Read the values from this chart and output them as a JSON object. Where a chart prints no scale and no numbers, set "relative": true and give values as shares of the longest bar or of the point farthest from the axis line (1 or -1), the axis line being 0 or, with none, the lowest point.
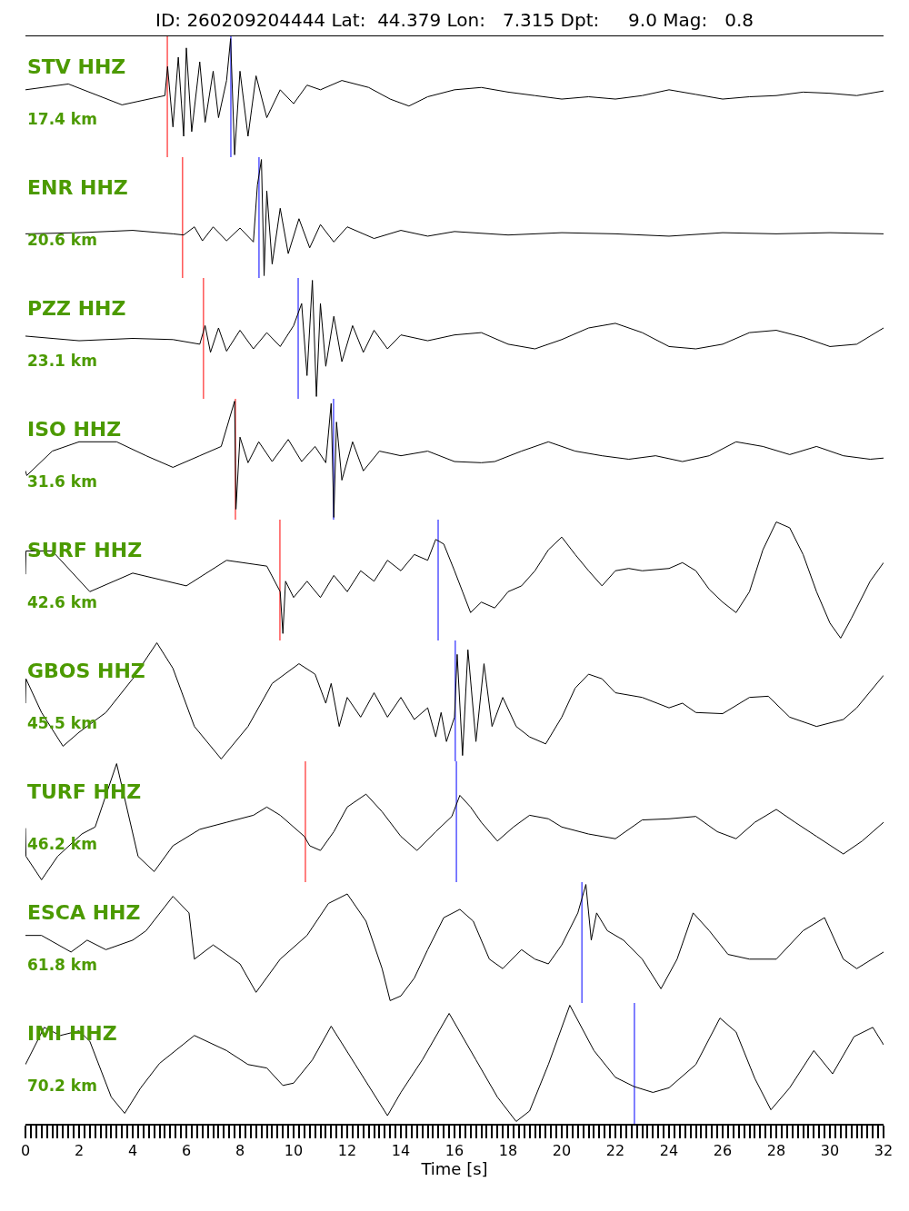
{
  "chart_data": [
    {
      "type": "line",
      "title": "ID: 260209204444 Lat:  44.379 Lon:   7.315 Dpt:     9.0 Mag:   0.8",
      "annotations": [
        "STV HHZ",
        "17.4 km"
      ],
      "relative": true,
      "xlim": [
        0,
        32
      ],
      "tick_labels": false,
      "series": [
        {
          "color": "#000000",
          "x": [
            0,
            1.6,
            3.6,
            5.2,
            5.3,
            5.5,
            5.7,
            5.9,
            6.0,
            6.2,
            6.5,
            6.7,
            7.0,
            7.2,
            7.5,
            7.65,
            7.8,
            8.0,
            8.3,
            8.6,
            9.0,
            9.5,
            10,
            10.5,
            11,
            11.8,
            12.8,
            13.6,
            14.3,
            15,
            16,
            17,
            18,
            19,
            20,
            21,
            22,
            23,
            24,
            25,
            26,
            27,
            28,
            29,
            30,
            31,
            32
          ],
          "values": [
            0.56,
            0.61,
            0.43,
            0.51,
            0.76,
            0.24,
            0.84,
            0.16,
            0.92,
            0.2,
            0.8,
            0.28,
            0.72,
            0.32,
            0.64,
            1,
            0,
            0.72,
            0.16,
            0.68,
            0.32,
            0.56,
            0.44,
            0.6,
            0.56,
            0.64,
            0.58,
            0.48,
            0.42,
            0.5,
            0.56,
            0.58,
            0.54,
            0.51,
            0.48,
            0.5,
            0.48,
            0.51,
            0.56,
            0.52,
            0.48,
            0.5,
            0.51,
            0.54,
            0.53,
            0.51,
            0.55
          ]
        }
      ],
      "ref_lines": [
        {
          "axis": "x",
          "value": 5.29,
          "color": "#ff0000"
        },
        {
          "axis": "x",
          "value": 7.66,
          "color": "#0000ff"
        }
      ]
    },
    {
      "type": "line",
      "annotations": [
        "ENR HHZ",
        "20.6 km"
      ],
      "relative": true,
      "xlim": [
        0,
        32
      ],
      "tick_labels": false,
      "series": [
        {
          "color": "#000000",
          "x": [
            0,
            2,
            4,
            5.5,
            5.9,
            6.3,
            6.6,
            7,
            7.5,
            8,
            8.5,
            8.65,
            8.8,
            8.9,
            9.0,
            9.2,
            9.5,
            9.8,
            10.2,
            10.6,
            11,
            11.5,
            12,
            13,
            14,
            15,
            16,
            18,
            20,
            22,
            24,
            26,
            28,
            30,
            32
          ],
          "values": [
            0.36,
            0.37,
            0.39,
            0.36,
            0.35,
            0.42,
            0.3,
            0.42,
            0.3,
            0.41,
            0.29,
            0.78,
            1,
            0,
            0.73,
            0.1,
            0.58,
            0.19,
            0.49,
            0.24,
            0.44,
            0.29,
            0.42,
            0.32,
            0.39,
            0.34,
            0.38,
            0.35,
            0.37,
            0.36,
            0.34,
            0.37,
            0.36,
            0.37,
            0.36
          ]
        }
      ],
      "ref_lines": [
        {
          "axis": "x",
          "value": 5.86,
          "color": "#ff0000"
        },
        {
          "axis": "x",
          "value": 8.71,
          "color": "#0000ff"
        }
      ]
    },
    {
      "type": "line",
      "annotations": [
        "PZZ HHZ",
        "23.1 km"
      ],
      "relative": true,
      "xlim": [
        0,
        32
      ],
      "tick_labels": false,
      "series": [
        {
          "color": "#000000",
          "x": [
            0,
            2,
            4,
            5.5,
            6.5,
            6.7,
            6.9,
            7.2,
            7.5,
            8,
            8.5,
            9,
            9.5,
            10,
            10.3,
            10.5,
            10.7,
            10.85,
            11,
            11.2,
            11.5,
            11.8,
            12.2,
            12.6,
            13,
            13.5,
            14,
            15,
            16,
            17,
            18,
            19,
            20,
            21,
            22,
            23,
            24,
            25,
            26,
            27,
            28,
            29,
            30,
            31,
            32
          ],
          "values": [
            0.52,
            0.48,
            0.5,
            0.49,
            0.45,
            0.61,
            0.38,
            0.59,
            0.39,
            0.57,
            0.41,
            0.55,
            0.43,
            0.61,
            0.8,
            0.18,
            1,
            0,
            0.8,
            0.26,
            0.69,
            0.3,
            0.61,
            0.38,
            0.57,
            0.41,
            0.53,
            0.48,
            0.53,
            0.55,
            0.45,
            0.41,
            0.49,
            0.59,
            0.63,
            0.55,
            0.43,
            0.41,
            0.45,
            0.55,
            0.57,
            0.51,
            0.43,
            0.45,
            0.59
          ]
        }
      ],
      "ref_lines": [
        {
          "axis": "x",
          "value": 6.64,
          "color": "#ff0000"
        },
        {
          "axis": "x",
          "value": 10.17,
          "color": "#0000ff"
        }
      ]
    },
    {
      "type": "line",
      "annotations": [
        "ISO HHZ",
        "31.6 km"
      ],
      "relative": true,
      "xlim": [
        0,
        32
      ],
      "tick_labels": false,
      "series": [
        {
          "color": "#000000",
          "x": [
            0,
            0.05,
            1,
            2,
            3.4,
            4.5,
            5.5,
            6.5,
            7.3,
            7.8,
            7.85,
            8.0,
            8.3,
            8.7,
            9.2,
            9.8,
            10.3,
            10.8,
            11.2,
            11.4,
            11.5,
            11.6,
            11.8,
            12.2,
            12.6,
            13.2,
            14,
            15,
            16,
            17,
            17.5,
            18.5,
            19.5,
            20.5,
            21.5,
            22.5,
            23.5,
            24.5,
            25.5,
            26.5,
            27.5,
            28.5,
            29.5,
            30.5,
            31.5,
            32
          ],
          "values": [
            0.4,
            0.36,
            0.57,
            0.65,
            0.65,
            0.53,
            0.43,
            0.53,
            0.61,
            1,
            0.07,
            0.69,
            0.47,
            0.65,
            0.48,
            0.67,
            0.48,
            0.61,
            0.47,
            0.98,
            0,
            0.82,
            0.32,
            0.65,
            0.4,
            0.57,
            0.53,
            0.57,
            0.48,
            0.47,
            0.48,
            0.57,
            0.65,
            0.57,
            0.53,
            0.5,
            0.53,
            0.48,
            0.53,
            0.65,
            0.61,
            0.54,
            0.61,
            0.53,
            0.5,
            0.51
          ]
        }
      ],
      "ref_lines": [
        {
          "axis": "x",
          "value": 7.83,
          "color": "#ff0000"
        },
        {
          "axis": "x",
          "value": 11.49,
          "color": "#0000ff"
        }
      ]
    },
    {
      "type": "line",
      "annotations": [
        "SURF HHZ",
        "42.6 km"
      ],
      "relative": true,
      "xlim": [
        0,
        32
      ],
      "tick_labels": false,
      "series": [
        {
          "color": "#000000",
          "x": [
            0,
            0.02,
            1,
            2.4,
            4,
            6,
            7.5,
            9,
            9.5,
            9.6,
            9.7,
            10,
            10.5,
            11,
            11.5,
            12,
            12.5,
            13,
            13.5,
            14,
            14.5,
            15,
            15.3,
            15.6,
            16,
            16.3,
            16.6,
            17,
            17.5,
            18,
            18.5,
            19,
            19.5,
            20,
            20.5,
            21,
            21.5,
            22,
            22.5,
            23,
            24,
            24.5,
            25,
            25.5,
            26,
            26.5,
            27,
            27.5,
            28,
            28.5,
            29,
            29.5,
            30,
            30.4,
            30.8,
            31.5,
            32
          ],
          "values": [
            0.55,
            0.75,
            0.75,
            0.4,
            0.56,
            0.45,
            0.67,
            0.62,
            0.4,
            0.04,
            0.49,
            0.35,
            0.49,
            0.35,
            0.54,
            0.4,
            0.58,
            0.49,
            0.67,
            0.58,
            0.72,
            0.67,
            0.85,
            0.81,
            0.58,
            0.4,
            0.22,
            0.31,
            0.26,
            0.4,
            0.45,
            0.58,
            0.76,
            0.87,
            0.72,
            0.58,
            0.45,
            0.58,
            0.6,
            0.58,
            0.6,
            0.65,
            0.58,
            0.42,
            0.31,
            0.22,
            0.4,
            0.76,
            1,
            0.95,
            0.72,
            0.4,
            0.13,
            0,
            0.17,
            0.49,
            0.65
          ]
        }
      ],
      "ref_lines": [
        {
          "axis": "x",
          "value": 9.49,
          "color": "#ff0000"
        },
        {
          "axis": "x",
          "value": 15.39,
          "color": "#0000ff"
        }
      ]
    },
    {
      "type": "line",
      "annotations": [
        "GBOS HHZ",
        "45.5 km"
      ],
      "relative": true,
      "xlim": [
        0,
        32
      ],
      "tick_labels": false,
      "series": [
        {
          "color": "#000000",
          "x": [
            0,
            0.02,
            0.6,
            1.4,
            2,
            3,
            4,
            4.9,
            5.5,
            6.3,
            7.3,
            8.3,
            9.2,
            10.2,
            10.8,
            11.2,
            11.4,
            11.7,
            12,
            12.5,
            13,
            13.5,
            14,
            14.5,
            15,
            15.3,
            15.5,
            15.7,
            16,
            16.1,
            16.3,
            16.5,
            16.8,
            17.1,
            17.4,
            17.8,
            18.3,
            18.8,
            19.4,
            20,
            20.5,
            21,
            21.5,
            22,
            23,
            24,
            24.5,
            25,
            26,
            27,
            27.7,
            28.5,
            29.5,
            30.5,
            31,
            32
          ],
          "values": [
            0.48,
            0.69,
            0.4,
            0.11,
            0.23,
            0.4,
            0.69,
            1,
            0.78,
            0.28,
            0,
            0.28,
            0.65,
            0.82,
            0.73,
            0.48,
            0.65,
            0.28,
            0.53,
            0.36,
            0.57,
            0.36,
            0.53,
            0.34,
            0.44,
            0.19,
            0.4,
            0.15,
            0.36,
            0.9,
            0.03,
            0.94,
            0.15,
            0.82,
            0.28,
            0.53,
            0.28,
            0.19,
            0.13,
            0.36,
            0.61,
            0.73,
            0.69,
            0.57,
            0.53,
            0.44,
            0.48,
            0.4,
            0.39,
            0.53,
            0.54,
            0.36,
            0.28,
            0.34,
            0.44,
            0.72
          ]
        }
      ],
      "ref_lines": [
        {
          "axis": "x",
          "value": 16.03,
          "color": "#0000ff"
        }
      ]
    },
    {
      "type": "line",
      "annotations": [
        "TURF HHZ",
        "46.2 km"
      ],
      "relative": true,
      "xlim": [
        0,
        32
      ],
      "tick_labels": false,
      "series": [
        {
          "color": "#000000",
          "x": [
            0,
            0.02,
            0.6,
            1.2,
            2.1,
            2.6,
            3.4,
            4.2,
            4.8,
            5.5,
            6.5,
            7.5,
            8.5,
            9,
            9.5,
            10.4,
            10.6,
            11,
            11.5,
            12,
            12.7,
            13.3,
            14,
            14.6,
            15.3,
            15.9,
            16.2,
            16.6,
            17,
            17.6,
            18.2,
            18.8,
            19.5,
            20,
            21,
            22,
            23,
            24,
            25,
            25.8,
            26.5,
            27.2,
            28,
            28.7,
            29.5,
            30.5,
            31.2,
            32
          ],
          "values": [
            0.45,
            0.21,
            0.01,
            0.21,
            0.4,
            0.46,
            1,
            0.21,
            0.08,
            0.3,
            0.44,
            0.5,
            0.56,
            0.63,
            0.56,
            0.38,
            0.3,
            0.26,
            0.42,
            0.63,
            0.74,
            0.59,
            0.38,
            0.26,
            0.42,
            0.55,
            0.73,
            0.63,
            0.5,
            0.34,
            0.46,
            0.56,
            0.53,
            0.46,
            0.4,
            0.36,
            0.52,
            0.53,
            0.55,
            0.42,
            0.36,
            0.5,
            0.61,
            0.5,
            0.38,
            0.23,
            0.34,
            0.5
          ]
        }
      ],
      "ref_lines": [
        {
          "axis": "x",
          "value": 10.44,
          "color": "#ff0000"
        },
        {
          "axis": "x",
          "value": 16.07,
          "color": "#0000ff"
        }
      ]
    },
    {
      "type": "line",
      "annotations": [
        "ESCA HHZ",
        "61.8 km"
      ],
      "relative": true,
      "xlim": [
        0,
        32
      ],
      "tick_labels": false,
      "series": [
        {
          "color": "#000000",
          "x": [
            0,
            0.6,
            1.7,
            2.3,
            3,
            4,
            4.5,
            5.5,
            6.1,
            6.3,
            7,
            8,
            8.6,
            9.5,
            10.5,
            11.3,
            12,
            12.7,
            13.3,
            13.6,
            14,
            14.5,
            15,
            15.6,
            16.2,
            16.7,
            17.3,
            17.8,
            18.5,
            19,
            19.5,
            20,
            20.6,
            20.9,
            21.1,
            21.3,
            21.7,
            22.3,
            23,
            23.7,
            24.3,
            24.9,
            25.5,
            26.2,
            27,
            28,
            29,
            29.8,
            30.5,
            31,
            32
          ],
          "values": [
            0.57,
            0.57,
            0.43,
            0.53,
            0.45,
            0.53,
            0.61,
            0.9,
            0.76,
            0.37,
            0.49,
            0.33,
            0.09,
            0.37,
            0.57,
            0.84,
            0.92,
            0.69,
            0.29,
            0.02,
            0.06,
            0.21,
            0.45,
            0.72,
            0.79,
            0.69,
            0.37,
            0.29,
            0.45,
            0.37,
            0.33,
            0.49,
            0.76,
            1,
            0.53,
            0.76,
            0.61,
            0.53,
            0.37,
            0.12,
            0.37,
            0.76,
            0.61,
            0.41,
            0.37,
            0.37,
            0.61,
            0.72,
            0.37,
            0.29,
            0.43
          ]
        }
      ],
      "ref_lines": [
        {
          "axis": "x",
          "value": 20.75,
          "color": "#0000ff"
        }
      ]
    },
    {
      "type": "line",
      "xlabel": "Time [s]",
      "annotations": [
        "IMI HHZ",
        "70.2 km"
      ],
      "relative": true,
      "xlim": [
        0,
        32
      ],
      "tick_labels": "x",
      "xticks": [
        0,
        2,
        4,
        6,
        8,
        10,
        12,
        14,
        16,
        18,
        20,
        22,
        24,
        26,
        28,
        30,
        32,
        {
          "value": 0.2,
          "label": null
        },
        {
          "value": 0.4,
          "label": null
        },
        {
          "value": 0.6,
          "label": null
        },
        {
          "value": 0.8,
          "label": null
        },
        {
          "value": 1,
          "label": null
        },
        {
          "value": 1.2,
          "label": null
        },
        {
          "value": 1.4,
          "label": null
        },
        {
          "value": 1.6,
          "label": null
        },
        {
          "value": 1.8,
          "label": null
        },
        {
          "value": 2.2,
          "label": null
        },
        {
          "value": 2.4,
          "label": null
        },
        {
          "value": 2.6,
          "label": null
        },
        {
          "value": 2.8,
          "label": null
        },
        {
          "value": 3,
          "label": null
        },
        {
          "value": 3.2,
          "label": null
        },
        {
          "value": 3.4,
          "label": null
        },
        {
          "value": 3.6,
          "label": null
        },
        {
          "value": 3.8,
          "label": null
        },
        {
          "value": 4.2,
          "label": null
        },
        {
          "value": 4.4,
          "label": null
        },
        {
          "value": 4.6,
          "label": null
        },
        {
          "value": 4.8,
          "label": null
        },
        {
          "value": 5,
          "label": null
        },
        {
          "value": 5.2,
          "label": null
        },
        {
          "value": 5.4,
          "label": null
        },
        {
          "value": 5.6,
          "label": null
        },
        {
          "value": 5.8,
          "label": null
        },
        {
          "value": 6.2,
          "label": null
        },
        {
          "value": 6.4,
          "label": null
        },
        {
          "value": 6.6,
          "label": null
        },
        {
          "value": 6.8,
          "label": null
        },
        {
          "value": 7,
          "label": null
        },
        {
          "value": 7.2,
          "label": null
        },
        {
          "value": 7.4,
          "label": null
        },
        {
          "value": 7.6,
          "label": null
        },
        {
          "value": 7.8,
          "label": null
        },
        {
          "value": 8.2,
          "label": null
        },
        {
          "value": 8.4,
          "label": null
        },
        {
          "value": 8.6,
          "label": null
        },
        {
          "value": 8.8,
          "label": null
        },
        {
          "value": 9,
          "label": null
        },
        {
          "value": 9.2,
          "label": null
        },
        {
          "value": 9.4,
          "label": null
        },
        {
          "value": 9.6,
          "label": null
        },
        {
          "value": 9.8,
          "label": null
        },
        {
          "value": 10.2,
          "label": null
        },
        {
          "value": 10.4,
          "label": null
        },
        {
          "value": 10.6,
          "label": null
        },
        {
          "value": 10.8,
          "label": null
        },
        {
          "value": 11,
          "label": null
        },
        {
          "value": 11.2,
          "label": null
        },
        {
          "value": 11.4,
          "label": null
        },
        {
          "value": 11.6,
          "label": null
        },
        {
          "value": 11.8,
          "label": null
        },
        {
          "value": 12.2,
          "label": null
        },
        {
          "value": 12.4,
          "label": null
        },
        {
          "value": 12.6,
          "label": null
        },
        {
          "value": 12.8,
          "label": null
        },
        {
          "value": 13,
          "label": null
        },
        {
          "value": 13.2,
          "label": null
        },
        {
          "value": 13.4,
          "label": null
        },
        {
          "value": 13.6,
          "label": null
        },
        {
          "value": 13.8,
          "label": null
        },
        {
          "value": 14.2,
          "label": null
        },
        {
          "value": 14.4,
          "label": null
        },
        {
          "value": 14.6,
          "label": null
        },
        {
          "value": 14.8,
          "label": null
        },
        {
          "value": 15,
          "label": null
        },
        {
          "value": 15.2,
          "label": null
        },
        {
          "value": 15.4,
          "label": null
        },
        {
          "value": 15.6,
          "label": null
        },
        {
          "value": 15.8,
          "label": null
        },
        {
          "value": 16.2,
          "label": null
        },
        {
          "value": 16.4,
          "label": null
        },
        {
          "value": 16.6,
          "label": null
        },
        {
          "value": 16.8,
          "label": null
        },
        {
          "value": 17,
          "label": null
        },
        {
          "value": 17.2,
          "label": null
        },
        {
          "value": 17.4,
          "label": null
        },
        {
          "value": 17.6,
          "label": null
        },
        {
          "value": 17.8,
          "label": null
        },
        {
          "value": 18.2,
          "label": null
        },
        {
          "value": 18.4,
          "label": null
        },
        {
          "value": 18.6,
          "label": null
        },
        {
          "value": 18.8,
          "label": null
        },
        {
          "value": 19,
          "label": null
        },
        {
          "value": 19.2,
          "label": null
        },
        {
          "value": 19.4,
          "label": null
        },
        {
          "value": 19.6,
          "label": null
        },
        {
          "value": 19.8,
          "label": null
        },
        {
          "value": 20.2,
          "label": null
        },
        {
          "value": 20.4,
          "label": null
        },
        {
          "value": 20.6,
          "label": null
        },
        {
          "value": 20.8,
          "label": null
        },
        {
          "value": 21,
          "label": null
        },
        {
          "value": 21.2,
          "label": null
        },
        {
          "value": 21.4,
          "label": null
        },
        {
          "value": 21.6,
          "label": null
        },
        {
          "value": 21.8,
          "label": null
        },
        {
          "value": 22.2,
          "label": null
        },
        {
          "value": 22.4,
          "label": null
        },
        {
          "value": 22.6,
          "label": null
        },
        {
          "value": 22.8,
          "label": null
        },
        {
          "value": 23,
          "label": null
        },
        {
          "value": 23.2,
          "label": null
        },
        {
          "value": 23.4,
          "label": null
        },
        {
          "value": 23.6,
          "label": null
        },
        {
          "value": 23.8,
          "label": null
        },
        {
          "value": 24.2,
          "label": null
        },
        {
          "value": 24.4,
          "label": null
        },
        {
          "value": 24.6,
          "label": null
        },
        {
          "value": 24.8,
          "label": null
        },
        {
          "value": 25,
          "label": null
        },
        {
          "value": 25.2,
          "label": null
        },
        {
          "value": 25.4,
          "label": null
        },
        {
          "value": 25.6,
          "label": null
        },
        {
          "value": 25.8,
          "label": null
        },
        {
          "value": 26.2,
          "label": null
        },
        {
          "value": 26.4,
          "label": null
        },
        {
          "value": 26.6,
          "label": null
        },
        {
          "value": 26.8,
          "label": null
        },
        {
          "value": 27,
          "label": null
        },
        {
          "value": 27.2,
          "label": null
        },
        {
          "value": 27.4,
          "label": null
        },
        {
          "value": 27.6,
          "label": null
        },
        {
          "value": 27.8,
          "label": null
        },
        {
          "value": 28.2,
          "label": null
        },
        {
          "value": 28.4,
          "label": null
        },
        {
          "value": 28.6,
          "label": null
        },
        {
          "value": 28.8,
          "label": null
        },
        {
          "value": 29,
          "label": null
        },
        {
          "value": 29.2,
          "label": null
        },
        {
          "value": 29.4,
          "label": null
        },
        {
          "value": 29.6,
          "label": null
        },
        {
          "value": 29.8,
          "label": null
        },
        {
          "value": 30.2,
          "label": null
        },
        {
          "value": 30.4,
          "label": null
        },
        {
          "value": 30.6,
          "label": null
        },
        {
          "value": 30.8,
          "label": null
        },
        {
          "value": 31,
          "label": null
        },
        {
          "value": 31.2,
          "label": null
        },
        {
          "value": 31.4,
          "label": null
        },
        {
          "value": 31.6,
          "label": null
        },
        {
          "value": 31.8,
          "label": null
        }
      ],
      "series": [
        {
          "color": "#000000",
          "x": [
            0,
            0.7,
            1.3,
            2,
            2.4,
            3.2,
            3.7,
            4.3,
            5,
            6.3,
            7.5,
            8.3,
            9,
            9.6,
            10,
            10.7,
            11.4,
            12.3,
            13.5,
            14,
            14.8,
            15.8,
            16.8,
            17.6,
            18.3,
            18.8,
            19.5,
            20.3,
            21.2,
            22,
            22.7,
            23.4,
            24,
            25,
            25.9,
            26.5,
            27.2,
            27.8,
            28.5,
            29.4,
            30.1,
            30.9,
            31.6,
            32
          ],
          "values": [
            0.49,
            0.81,
            0.74,
            0.78,
            0.69,
            0.21,
            0.07,
            0.29,
            0.5,
            0.74,
            0.61,
            0.49,
            0.46,
            0.31,
            0.33,
            0.53,
            0.82,
            0.49,
            0.05,
            0.25,
            0.53,
            0.93,
            0.53,
            0.21,
            0,
            0.09,
            0.49,
            1,
            0.61,
            0.38,
            0.3,
            0.25,
            0.29,
            0.49,
            0.89,
            0.77,
            0.37,
            0.1,
            0.29,
            0.61,
            0.41,
            0.73,
            0.81,
            0.66
          ]
        }
      ],
      "ref_lines": [
        {
          "axis": "x",
          "value": 22.71,
          "color": "#0000ff"
        }
      ]
    }
  ]
}
